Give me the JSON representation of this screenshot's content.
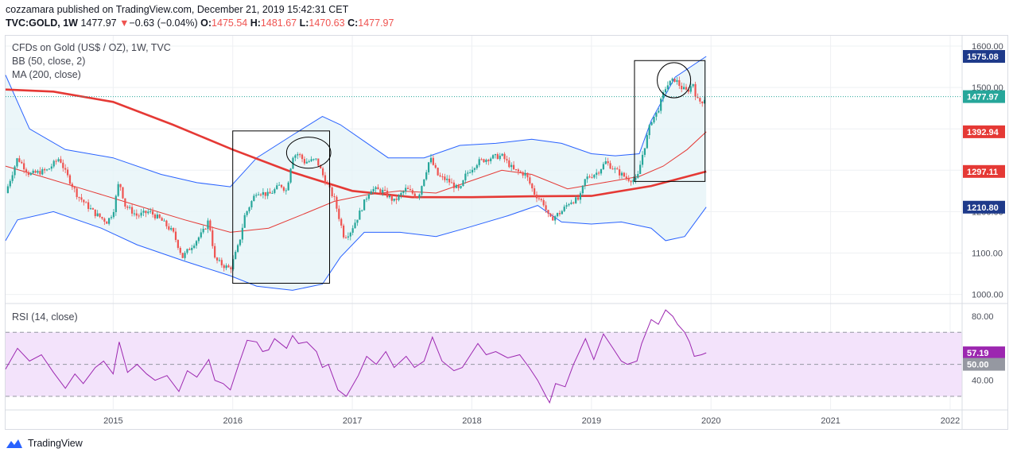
{
  "header": {
    "publish_line": "cozzamara published on TradingView.com, December 21, 2019 15:42:31 CET",
    "symbol": "TVC:GOLD, 1W",
    "price": "1477.97",
    "arrow": "▼",
    "change": "−0.63 (−0.04%)",
    "o_label": "O:",
    "o_val": "1475.54",
    "h_label": "H:",
    "h_val": "1481.67",
    "l_label": "L:",
    "l_val": "1470.63",
    "c_label": "C:",
    "c_val": "1477.97"
  },
  "legend": {
    "title": "CFDs on Gold (US$ / OZ), 1W, TVC",
    "bb": "BB (50, close, 2)",
    "ma": "MA (200, close)",
    "rsi": "RSI (14, close)"
  },
  "footer": {
    "brand": "TradingView"
  },
  "colors": {
    "up": "#26a69a",
    "down": "#ef5350",
    "bb": "#2962ff",
    "bb_fill": "#e6f4f7",
    "ma200": "#e53935",
    "rsi_line": "#9c27b0",
    "rsi_band": "#f3e3fb",
    "last_price": "#26a69a",
    "label_dark": "#1e3a8a"
  },
  "chart_data": [
    {
      "type": "candlestick",
      "title": "CFDs on Gold (US$ / OZ), 1W, TVC",
      "x_ticks": [
        "2015",
        "2016",
        "2017",
        "2018",
        "2019",
        "2020",
        "2021",
        "2022"
      ],
      "y_ticks": [
        "1000.00",
        "1100.00",
        "1200.00",
        "1300.00",
        "1400.00",
        "1500.00",
        "1600.00"
      ],
      "ylim": [
        980,
        1625
      ],
      "xlim": [
        2014.1,
        2022.1
      ],
      "price_labels": [
        {
          "text": "1575.08",
          "value": 1575.08,
          "style": "bb"
        },
        {
          "text": "1477.97",
          "value": 1477.97,
          "style": "last"
        },
        {
          "text": "1392.94",
          "value": 1392.94,
          "style": "ma"
        },
        {
          "text": "1297.11",
          "value": 1297.11,
          "style": "ma"
        },
        {
          "text": "1210.80",
          "value": 1210.8,
          "style": "bb"
        }
      ],
      "close_path": [
        [
          2014.1,
          1245
        ],
        [
          2014.2,
          1330
        ],
        [
          2014.3,
          1290
        ],
        [
          2014.45,
          1300
        ],
        [
          2014.55,
          1330
        ],
        [
          2014.6,
          1295
        ],
        [
          2014.7,
          1240
        ],
        [
          2014.78,
          1215
        ],
        [
          2014.85,
          1195
        ],
        [
          2014.95,
          1175
        ],
        [
          2015.0,
          1200
        ],
        [
          2015.05,
          1275
        ],
        [
          2015.1,
          1215
        ],
        [
          2015.2,
          1190
        ],
        [
          2015.3,
          1200
        ],
        [
          2015.4,
          1180
        ],
        [
          2015.5,
          1150
        ],
        [
          2015.58,
          1090
        ],
        [
          2015.65,
          1115
        ],
        [
          2015.75,
          1150
        ],
        [
          2015.8,
          1180
        ],
        [
          2015.85,
          1085
        ],
        [
          2015.92,
          1070
        ],
        [
          2015.98,
          1062
        ],
        [
          2016.05,
          1120
        ],
        [
          2016.1,
          1190
        ],
        [
          2016.2,
          1250
        ],
        [
          2016.3,
          1240
        ],
        [
          2016.4,
          1265
        ],
        [
          2016.45,
          1250
        ],
        [
          2016.5,
          1335
        ],
        [
          2016.55,
          1340
        ],
        [
          2016.6,
          1320
        ],
        [
          2016.7,
          1325
        ],
        [
          2016.78,
          1270
        ],
        [
          2016.85,
          1230
        ],
        [
          2016.93,
          1140
        ],
        [
          2016.98,
          1150
        ],
        [
          2017.05,
          1190
        ],
        [
          2017.15,
          1255
        ],
        [
          2017.25,
          1250
        ],
        [
          2017.35,
          1225
        ],
        [
          2017.45,
          1255
        ],
        [
          2017.55,
          1235
        ],
        [
          2017.65,
          1330
        ],
        [
          2017.72,
          1285
        ],
        [
          2017.8,
          1275
        ],
        [
          2017.9,
          1250
        ],
        [
          2017.95,
          1290
        ],
        [
          2018.05,
          1320
        ],
        [
          2018.15,
          1330
        ],
        [
          2018.25,
          1335
        ],
        [
          2018.35,
          1300
        ],
        [
          2018.45,
          1290
        ],
        [
          2018.52,
          1245
        ],
        [
          2018.6,
          1220
        ],
        [
          2018.65,
          1180
        ],
        [
          2018.75,
          1200
        ],
        [
          2018.82,
          1225
        ],
        [
          2018.9,
          1230
        ],
        [
          2018.95,
          1280
        ],
        [
          2019.05,
          1295
        ],
        [
          2019.12,
          1320
        ],
        [
          2019.2,
          1300
        ],
        [
          2019.3,
          1280
        ],
        [
          2019.38,
          1275
        ],
        [
          2019.42,
          1330
        ],
        [
          2019.5,
          1420
        ],
        [
          2019.55,
          1440
        ],
        [
          2019.62,
          1500
        ],
        [
          2019.65,
          1510
        ],
        [
          2019.7,
          1520
        ],
        [
          2019.75,
          1500
        ],
        [
          2019.8,
          1490
        ],
        [
          2019.85,
          1510
        ],
        [
          2019.88,
          1470
        ],
        [
          2019.92,
          1465
        ],
        [
          2019.96,
          1478
        ]
      ],
      "ma200_path": [
        [
          2014.1,
          1495
        ],
        [
          2014.5,
          1490
        ],
        [
          2015.0,
          1465
        ],
        [
          2015.5,
          1410
        ],
        [
          2016.0,
          1350
        ],
        [
          2016.5,
          1295
        ],
        [
          2017.0,
          1250
        ],
        [
          2017.5,
          1235
        ],
        [
          2018.0,
          1235
        ],
        [
          2018.5,
          1237
        ],
        [
          2019.0,
          1238
        ],
        [
          2019.5,
          1262
        ],
        [
          2019.96,
          1297
        ]
      ],
      "bb_upper_path": [
        [
          2014.1,
          1530
        ],
        [
          2014.3,
          1400
        ],
        [
          2014.6,
          1350
        ],
        [
          2015.0,
          1330
        ],
        [
          2015.4,
          1290
        ],
        [
          2015.7,
          1270
        ],
        [
          2015.98,
          1260
        ],
        [
          2016.2,
          1330
        ],
        [
          2016.5,
          1385
        ],
        [
          2016.75,
          1430
        ],
        [
          2016.9,
          1410
        ],
        [
          2017.1,
          1370
        ],
        [
          2017.3,
          1330
        ],
        [
          2017.6,
          1330
        ],
        [
          2017.9,
          1360
        ],
        [
          2018.2,
          1365
        ],
        [
          2018.5,
          1375
        ],
        [
          2018.75,
          1365
        ],
        [
          2019.0,
          1340
        ],
        [
          2019.2,
          1335
        ],
        [
          2019.4,
          1340
        ],
        [
          2019.5,
          1420
        ],
        [
          2019.7,
          1525
        ],
        [
          2019.96,
          1575
        ]
      ],
      "bb_middle_path": [
        [
          2014.1,
          1310
        ],
        [
          2014.4,
          1285
        ],
        [
          2014.8,
          1250
        ],
        [
          2015.2,
          1215
        ],
        [
          2015.6,
          1180
        ],
        [
          2015.98,
          1150
        ],
        [
          2016.3,
          1160
        ],
        [
          2016.6,
          1195
        ],
        [
          2016.85,
          1225
        ],
        [
          2017.1,
          1240
        ],
        [
          2017.4,
          1250
        ],
        [
          2017.7,
          1245
        ],
        [
          2017.95,
          1270
        ],
        [
          2018.25,
          1300
        ],
        [
          2018.5,
          1290
        ],
        [
          2018.8,
          1255
        ],
        [
          2019.1,
          1270
        ],
        [
          2019.4,
          1285
        ],
        [
          2019.6,
          1310
        ],
        [
          2019.8,
          1350
        ],
        [
          2019.96,
          1393
        ]
      ],
      "bb_lower_path": [
        [
          2014.1,
          1130
        ],
        [
          2014.2,
          1180
        ],
        [
          2014.5,
          1200
        ],
        [
          2014.9,
          1160
        ],
        [
          2015.2,
          1120
        ],
        [
          2015.6,
          1080
        ],
        [
          2015.98,
          1045
        ],
        [
          2016.2,
          1020
        ],
        [
          2016.5,
          1010
        ],
        [
          2016.75,
          1025
        ],
        [
          2016.9,
          1090
        ],
        [
          2017.1,
          1150
        ],
        [
          2017.4,
          1150
        ],
        [
          2017.7,
          1140
        ],
        [
          2017.95,
          1160
        ],
        [
          2018.3,
          1190
        ],
        [
          2018.55,
          1215
        ],
        [
          2018.75,
          1175
        ],
        [
          2019.0,
          1170
        ],
        [
          2019.25,
          1175
        ],
        [
          2019.5,
          1160
        ],
        [
          2019.62,
          1130
        ],
        [
          2019.78,
          1140
        ],
        [
          2019.96,
          1211
        ]
      ],
      "annotations": [
        {
          "shape": "rect",
          "x0": 2016.0,
          "x1": 2016.81,
          "y0": 1027,
          "y1": 1395
        },
        {
          "shape": "rect",
          "x0": 2019.36,
          "x1": 2019.95,
          "y0": 1273,
          "y1": 1565
        },
        {
          "shape": "ellipse",
          "x0": 2016.45,
          "x1": 2016.82,
          "y0": 1305,
          "y1": 1380
        },
        {
          "shape": "ellipse",
          "x0": 2019.55,
          "x1": 2019.83,
          "y0": 1475,
          "y1": 1560
        }
      ]
    },
    {
      "type": "line",
      "title": "RSI (14, close)",
      "y_ticks": [
        "40.00",
        "80.00"
      ],
      "ylim": [
        22,
        88
      ],
      "band": [
        30,
        70
      ],
      "mid": 50,
      "price_labels": [
        {
          "text": "57.19",
          "value": 57.19,
          "style": "rsi"
        },
        {
          "text": "50.00",
          "value": 50,
          "style": "grey"
        }
      ],
      "path": [
        [
          2014.1,
          47
        ],
        [
          2014.2,
          60
        ],
        [
          2014.3,
          52
        ],
        [
          2014.4,
          56
        ],
        [
          2014.5,
          45
        ],
        [
          2014.6,
          35
        ],
        [
          2014.68,
          44
        ],
        [
          2014.75,
          38
        ],
        [
          2014.85,
          48
        ],
        [
          2014.92,
          52
        ],
        [
          2015.0,
          44
        ],
        [
          2015.05,
          64
        ],
        [
          2015.12,
          45
        ],
        [
          2015.2,
          50
        ],
        [
          2015.28,
          44
        ],
        [
          2015.35,
          40
        ],
        [
          2015.45,
          43
        ],
        [
          2015.55,
          33
        ],
        [
          2015.62,
          46
        ],
        [
          2015.7,
          42
        ],
        [
          2015.8,
          53
        ],
        [
          2015.85,
          40
        ],
        [
          2015.92,
          38
        ],
        [
          2015.98,
          34
        ],
        [
          2016.05,
          50
        ],
        [
          2016.12,
          65
        ],
        [
          2016.2,
          64
        ],
        [
          2016.25,
          58
        ],
        [
          2016.3,
          59
        ],
        [
          2016.35,
          66
        ],
        [
          2016.45,
          60
        ],
        [
          2016.5,
          68
        ],
        [
          2016.55,
          63
        ],
        [
          2016.62,
          64
        ],
        [
          2016.7,
          58
        ],
        [
          2016.75,
          48
        ],
        [
          2016.8,
          50
        ],
        [
          2016.88,
          34
        ],
        [
          2016.95,
          30
        ],
        [
          2017.05,
          43
        ],
        [
          2017.12,
          55
        ],
        [
          2017.2,
          50
        ],
        [
          2017.28,
          58
        ],
        [
          2017.35,
          48
        ],
        [
          2017.45,
          55
        ],
        [
          2017.52,
          48
        ],
        [
          2017.6,
          52
        ],
        [
          2017.67,
          67
        ],
        [
          2017.75,
          52
        ],
        [
          2017.85,
          46
        ],
        [
          2017.92,
          48
        ],
        [
          2018.05,
          63
        ],
        [
          2018.12,
          56
        ],
        [
          2018.2,
          58
        ],
        [
          2018.3,
          54
        ],
        [
          2018.4,
          56
        ],
        [
          2018.48,
          48
        ],
        [
          2018.55,
          40
        ],
        [
          2018.62,
          30
        ],
        [
          2018.65,
          26
        ],
        [
          2018.7,
          38
        ],
        [
          2018.78,
          36
        ],
        [
          2018.85,
          50
        ],
        [
          2018.95,
          66
        ],
        [
          2019.02,
          53
        ],
        [
          2019.1,
          69
        ],
        [
          2019.18,
          60
        ],
        [
          2019.25,
          52
        ],
        [
          2019.3,
          50
        ],
        [
          2019.38,
          52
        ],
        [
          2019.42,
          63
        ],
        [
          2019.5,
          78
        ],
        [
          2019.56,
          75
        ],
        [
          2019.62,
          84
        ],
        [
          2019.68,
          80
        ],
        [
          2019.72,
          75
        ],
        [
          2019.78,
          70
        ],
        [
          2019.82,
          64
        ],
        [
          2019.86,
          55
        ],
        [
          2019.92,
          56
        ],
        [
          2019.96,
          57.19
        ]
      ]
    }
  ]
}
